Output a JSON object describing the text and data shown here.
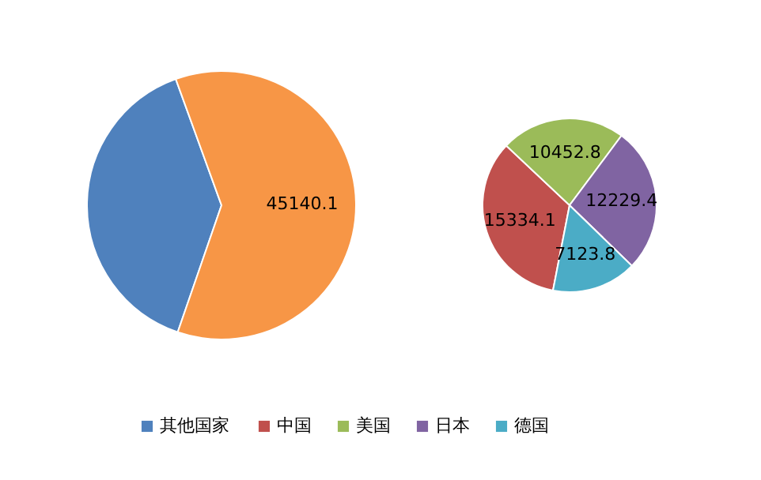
{
  "chart_data": [
    {
      "type": "pie",
      "categories": [
        "其他国家",
        null
      ],
      "values": [
        29100,
        45140.1
      ],
      "colors": [
        "#4f81bd",
        "#f79646"
      ],
      "value_labels": [
        null,
        "45140.1"
      ],
      "legend": "bottom"
    },
    {
      "type": "pie",
      "categories": [
        "中国",
        "美国",
        "日本",
        "德国"
      ],
      "values": [
        15334.1,
        10452.8,
        12229.4,
        7123.8
      ],
      "colors": [
        "#c0504d",
        "#9bbb59",
        "#8064a2",
        "#4bacc6"
      ],
      "data_labels": true,
      "legend": "bottom"
    }
  ]
}
